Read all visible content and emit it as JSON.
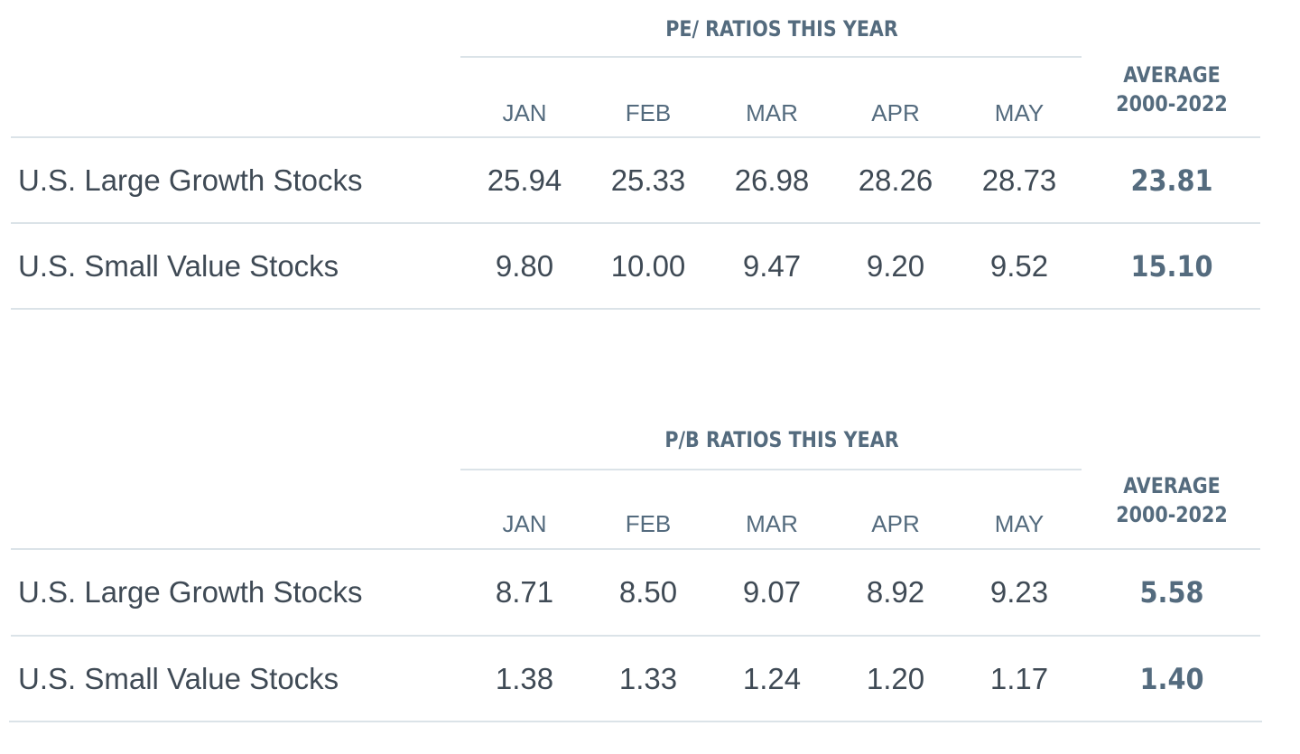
{
  "tables": [
    {
      "group_title": "PE/ RATIOS THIS YEAR",
      "months": [
        "JAN",
        "FEB",
        "MAR",
        "APR",
        "MAY"
      ],
      "average_header_line1": "AVERAGE",
      "average_header_line2": "2000-2022",
      "rows": [
        {
          "label": "U.S. Large Growth Stocks",
          "values": [
            "25.94",
            "25.33",
            "26.98",
            "28.26",
            "28.73"
          ],
          "average": "23.81"
        },
        {
          "label": "U.S. Small Value Stocks",
          "values": [
            "9.80",
            "10.00",
            "9.47",
            "9.20",
            "9.52"
          ],
          "average": "15.10"
        }
      ]
    },
    {
      "group_title": "P/B RATIOS THIS YEAR",
      "months": [
        "JAN",
        "FEB",
        "MAR",
        "APR",
        "MAY"
      ],
      "average_header_line1": "AVERAGE",
      "average_header_line2": "2000-2022",
      "rows": [
        {
          "label": "U.S. Large Growth Stocks",
          "values": [
            "8.71",
            "8.50",
            "9.07",
            "8.92",
            "9.23"
          ],
          "average": "5.58"
        },
        {
          "label": "U.S. Small Value Stocks",
          "values": [
            "1.38",
            "1.33",
            "1.24",
            "1.20",
            "1.17"
          ],
          "average": "1.40"
        }
      ]
    }
  ],
  "colors": {
    "header_text": "#546b7e",
    "body_text": "#3f4a55",
    "rule": "#dbe3e8"
  }
}
